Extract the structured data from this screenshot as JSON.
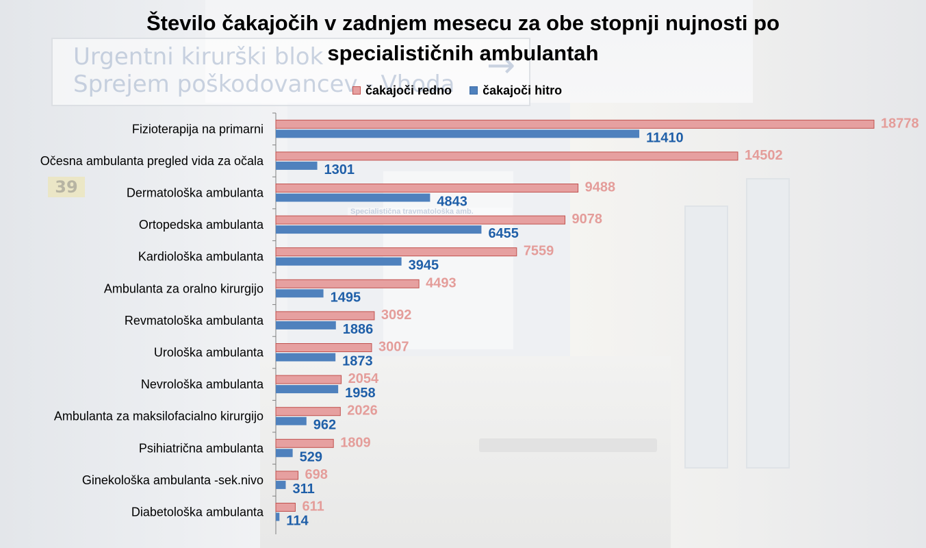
{
  "background": {
    "sign_line1": "Urgentni kirurški blok",
    "sign_line2": "Sprejem poškodovancev - Vhoda",
    "sign_arrow": "→",
    "door_number": "39",
    "sub_sign": "Specialistična travmatološka amb."
  },
  "colors": {
    "redno": "#e6a0a0",
    "redno_border": "#c0504d",
    "hitro": "#4f81bd"
  },
  "chart_data": {
    "type": "bar",
    "orientation": "horizontal",
    "title_line1": "Število čakajočih v zadnjem mesecu za obe stopnji nujnosti po",
    "title_line2": "specialističnih ambulantah",
    "legend_placement": "top",
    "grid": false,
    "xlim": [
      0,
      19500
    ],
    "categories": [
      "Fizioterapija na primarni",
      "Očesna ambulanta  pregled vida za očala",
      "Dermatološka ambulanta",
      "Ortopedska ambulanta",
      "Kardiološka ambulanta",
      "Ambulanta za oralno kirurgijo",
      "Revmatološka ambulanta",
      "Urološka ambulanta",
      "Nevrološka ambulanta",
      "Ambulanta za maksilofacialno kirurgijo",
      "Psihiatrična ambulanta",
      "Ginekološka ambulanta -sek.nivo",
      "Diabetološka ambulanta"
    ],
    "series": [
      {
        "name": "čakajoči redno",
        "values": [
          18778,
          14502,
          9488,
          9078,
          7559,
          4493,
          3092,
          3007,
          2054,
          2026,
          1809,
          698,
          611
        ]
      },
      {
        "name": "čakajoči hitro",
        "values": [
          11410,
          1301,
          4843,
          6455,
          3945,
          1495,
          1886,
          1873,
          1958,
          962,
          529,
          311,
          114
        ]
      }
    ]
  }
}
